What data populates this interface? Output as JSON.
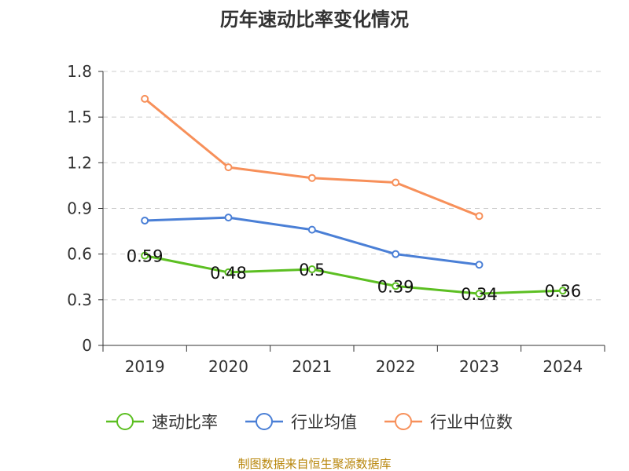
{
  "chart_data": {
    "type": "line",
    "title": "历年速动比率变化情况",
    "categories": [
      "2019",
      "2020",
      "2021",
      "2022",
      "2023",
      "2024"
    ],
    "ylim": [
      0,
      1.8
    ],
    "yticks": [
      "0",
      "0.3",
      "0.6",
      "0.9",
      "1.2",
      "1.5",
      "1.8"
    ],
    "grid": true,
    "legend_position": "bottom",
    "series": [
      {
        "name": "速动比率",
        "color": "#5cbf22",
        "values": [
          0.59,
          0.48,
          0.5,
          0.39,
          0.34,
          0.36
        ],
        "labels": [
          "0.59",
          "0.48",
          "0.5",
          "0.39",
          "0.34",
          "0.36"
        ]
      },
      {
        "name": "行业均值",
        "color": "#4a7fd6",
        "values": [
          0.82,
          0.84,
          0.76,
          0.6,
          0.53,
          null
        ]
      },
      {
        "name": "行业中位数",
        "color": "#f7905a",
        "values": [
          1.62,
          1.17,
          1.1,
          1.07,
          0.85,
          null
        ]
      }
    ],
    "source": "制图数据来自恒生聚源数据库"
  }
}
